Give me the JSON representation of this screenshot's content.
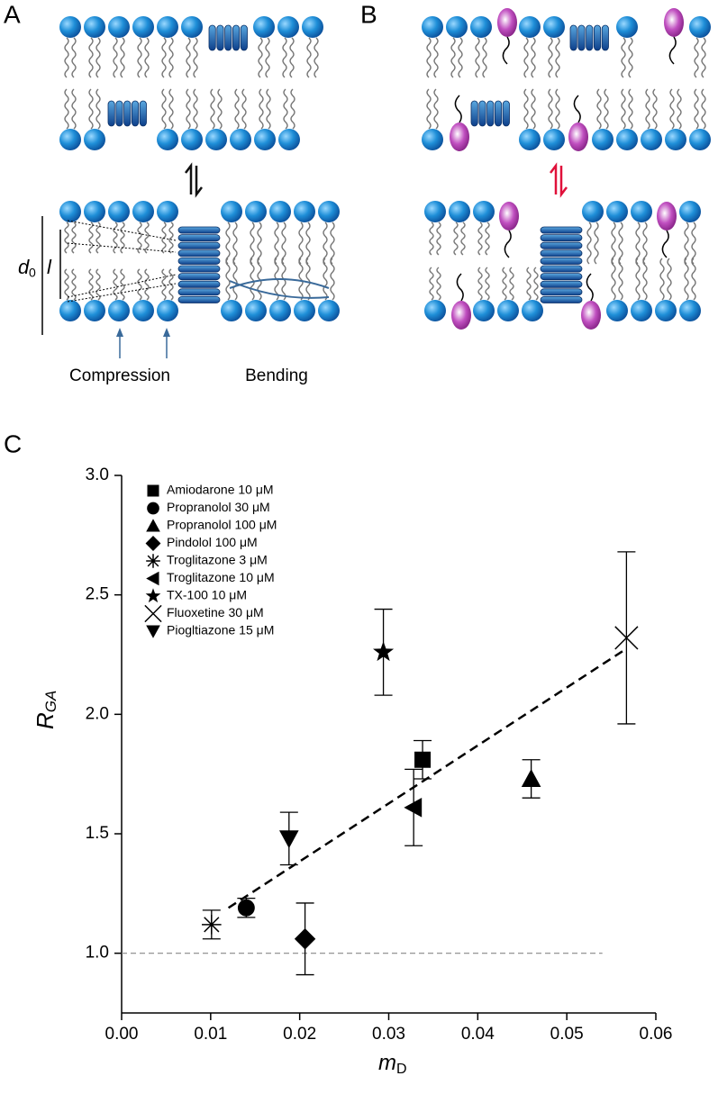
{
  "panel_labels": [
    "A",
    "B",
    "C"
  ],
  "diagram_labels": {
    "compression": "Compression",
    "bending": "Bending",
    "d": "d",
    "d_sub": "0",
    "l": "l"
  },
  "chart_data": {
    "type": "scatter",
    "xlabel": {
      "main": "m",
      "sub": "D"
    },
    "ylabel": {
      "main": "R",
      "sub": "GA"
    },
    "xlim": [
      0,
      0.06
    ],
    "ylim": [
      0.75,
      3.0
    ],
    "xticks": [
      {
        "value": 0,
        "label": "0.00"
      },
      0.01,
      0.02,
      0.03,
      0.04,
      0.05,
      0.06
    ],
    "yticks": [
      {
        "value": 1,
        "label": "1.0"
      },
      1.5,
      {
        "value": 2,
        "label": "2.0"
      },
      2.5,
      {
        "value": 3,
        "label": "3.0"
      }
    ],
    "color": "#000000",
    "series": [
      {
        "name": "Amiodarone 10 μM",
        "marker": "square",
        "x": [
          0.0338
        ],
        "values": [
          1.81
        ],
        "errors": [
          0.08
        ]
      },
      {
        "name": "Propranolol 30 μM",
        "marker": "circle",
        "x": [
          0.014
        ],
        "values": [
          1.19
        ],
        "errors": [
          0.04
        ]
      },
      {
        "name": "Propranolol 100 μM",
        "marker": "triangle-up",
        "x": [
          0.046
        ],
        "values": [
          1.73
        ],
        "errors": [
          0.08
        ]
      },
      {
        "name": "Pindolol 100 μM",
        "marker": "diamond",
        "x": [
          0.0206
        ],
        "values": [
          1.06
        ],
        "errors": [
          0.15
        ]
      },
      {
        "name": "Troglitazone 3 μM",
        "marker": "asterisk",
        "x": [
          0.0101
        ],
        "values": [
          1.12
        ],
        "errors": [
          0.06
        ]
      },
      {
        "name": "Troglitazone 10 μM",
        "marker": "triangle-left",
        "x": [
          0.0328
        ],
        "values": [
          1.61
        ],
        "errors": [
          0.16
        ]
      },
      {
        "name": "TX-100 10 μM",
        "marker": "star",
        "x": [
          0.0294
        ],
        "values": [
          2.26
        ],
        "errors": [
          0.18
        ]
      },
      {
        "name": "Fluoxetine 30 μM",
        "marker": "cross",
        "x": [
          0.0567
        ],
        "values": [
          2.32
        ],
        "errors": [
          0.36
        ]
      },
      {
        "name": "Piogltiazone 15 μM",
        "marker": "triangle-down",
        "x": [
          0.0188
        ],
        "values": [
          1.48
        ],
        "errors": [
          0.11
        ]
      }
    ],
    "fit_line": {
      "x": [
        0.012,
        0.0565
      ],
      "y": [
        1.19,
        2.27
      ]
    },
    "reference_line": {
      "x": [
        0,
        0.054
      ],
      "y": [
        1,
        1
      ]
    }
  }
}
